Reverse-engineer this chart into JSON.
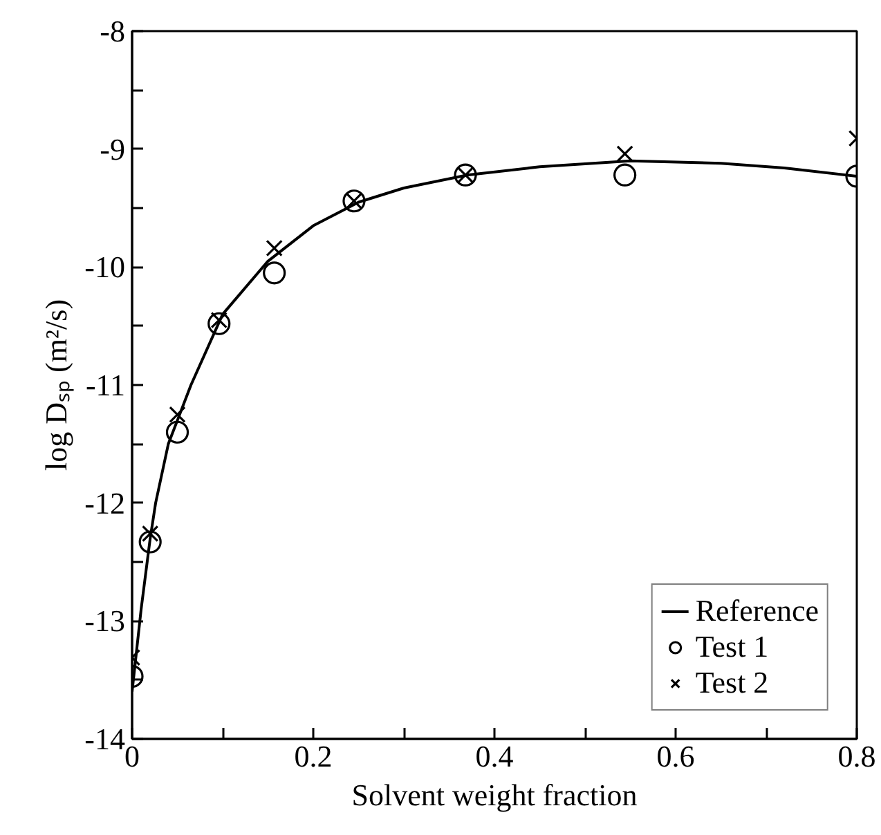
{
  "chart_data": {
    "type": "scatter",
    "xlabel": "Solvent weight fraction",
    "ylabel": "log Dₛₚ (m²/s)",
    "xlim": [
      0,
      0.8
    ],
    "ylim": [
      -14,
      -8
    ],
    "xticks": [
      0,
      {
        "value": 0.1,
        "label": null
      },
      0.2,
      {
        "value": 0.3,
        "label": null
      },
      0.4,
      {
        "value": 0.5,
        "label": null
      },
      0.6,
      {
        "value": 0.7,
        "label": null
      },
      0.8
    ],
    "yticks": [
      -14,
      {
        "value": -13.5,
        "label": null
      },
      -13,
      {
        "value": -12.5,
        "label": null
      },
      -12,
      {
        "value": -11.5,
        "label": null
      },
      -11,
      {
        "value": -10.5,
        "label": null
      },
      -10,
      {
        "value": -9.5,
        "label": null
      },
      -9,
      {
        "value": -8.5,
        "label": null
      },
      -8
    ],
    "grid": false,
    "legend": "bottom right",
    "series": [
      {
        "name": "Reference",
        "type": "line",
        "color": "#000000",
        "line_style": "solid",
        "marker": "none",
        "x": [
          0,
          0.01,
          0.02,
          0.026,
          0.04,
          0.065,
          0.1,
          0.15,
          0.2,
          0.25,
          0.3,
          0.37,
          0.45,
          0.55,
          0.65,
          0.72,
          0.8
        ],
        "values": [
          -13.6,
          -12.9,
          -12.3,
          -12.0,
          -11.5,
          -11.0,
          -10.4,
          -9.95,
          -9.65,
          -9.45,
          -9.33,
          -9.22,
          -9.15,
          -9.1,
          -9.12,
          -9.16,
          -9.23
        ]
      },
      {
        "name": "Test 1",
        "color": "#000000",
        "marker": "circle",
        "x": [
          0,
          0.02,
          0.05,
          0.096,
          0.157,
          0.245,
          0.368,
          0.544,
          0.8
        ],
        "values": [
          -13.47,
          -12.33,
          -11.4,
          -10.48,
          -10.05,
          -9.44,
          -9.22,
          -9.22,
          -9.23
        ]
      },
      {
        "name": "Test 2",
        "color": "#000000",
        "marker": "cross",
        "x": [
          0,
          0.02,
          0.05,
          0.096,
          0.157,
          0.245,
          0.368,
          0.544,
          0.8
        ],
        "values": [
          -13.31,
          -12.26,
          -11.25,
          -10.45,
          -9.84,
          -9.44,
          -9.22,
          -9.04,
          -8.91
        ]
      }
    ]
  }
}
